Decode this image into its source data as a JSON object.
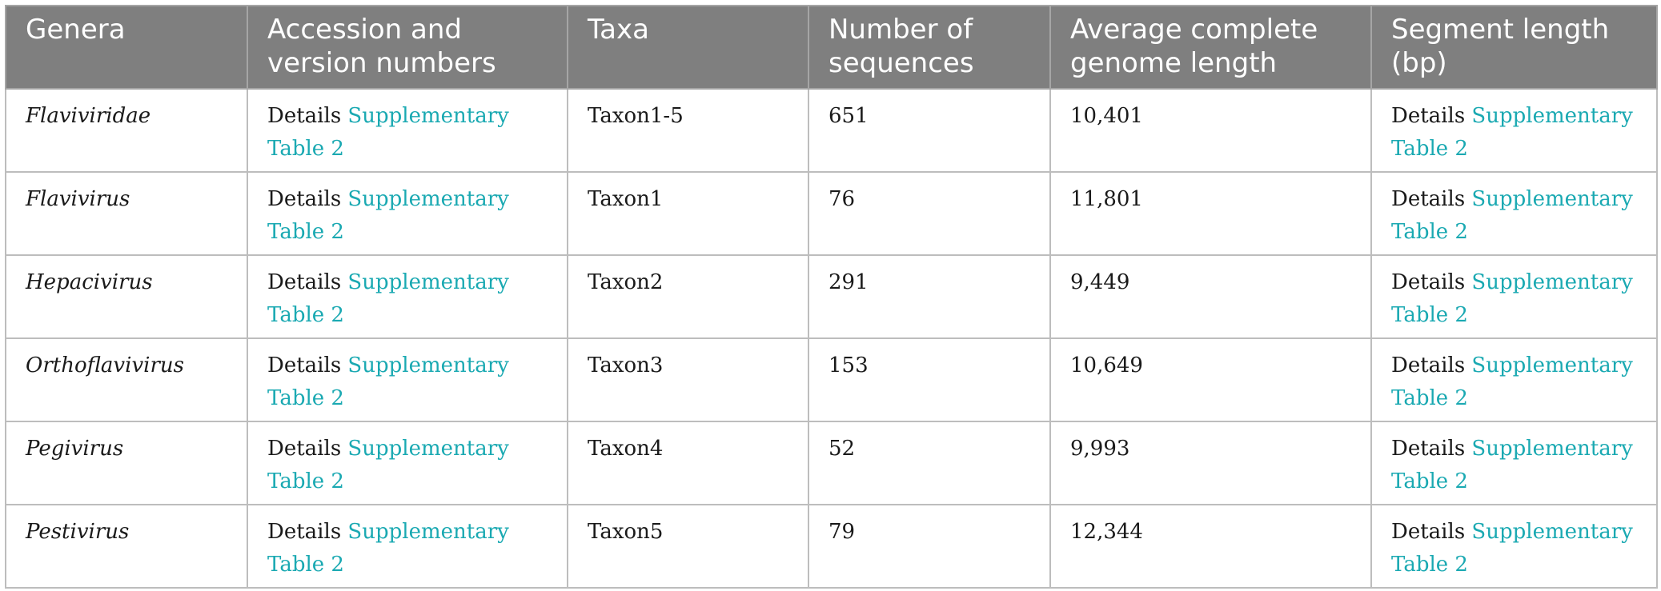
{
  "columns": [
    "Genera",
    "Accession and version numbers",
    "Taxa",
    "Number of sequences",
    "Average complete genome length",
    "Segment length (bp)"
  ],
  "details_text": "Details",
  "link_text": "Supplementary Table 2",
  "rows": [
    {
      "genus": "Flaviviridae",
      "taxa": "Taxon1-5",
      "sequences": "651",
      "avg_length": "10,401"
    },
    {
      "genus": "Flavivirus",
      "taxa": "Taxon1",
      "sequences": "76",
      "avg_length": "11,801"
    },
    {
      "genus": "Hepacivirus",
      "taxa": "Taxon2",
      "sequences": "291",
      "avg_length": "9,449"
    },
    {
      "genus": "Orthoflavivirus",
      "taxa": "Taxon3",
      "sequences": "153",
      "avg_length": "10,649"
    },
    {
      "genus": "Pegivirus",
      "taxa": "Taxon4",
      "sequences": "52",
      "avg_length": "9,993"
    },
    {
      "genus": "Pestivirus",
      "taxa": "Taxon5",
      "sequences": "79",
      "avg_length": "12,344"
    }
  ]
}
